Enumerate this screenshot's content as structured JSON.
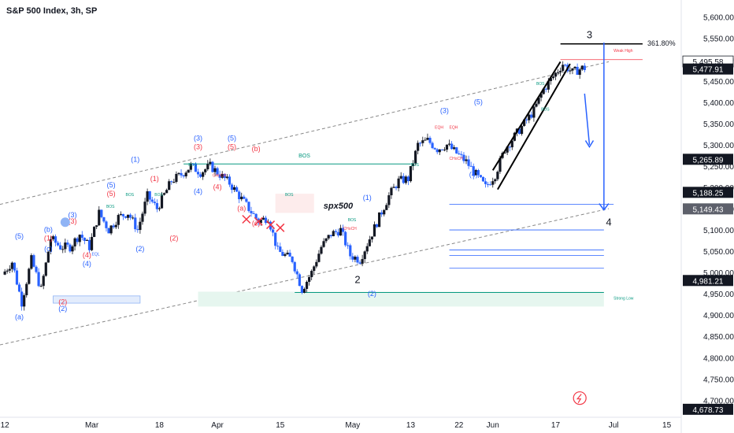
{
  "header": {
    "title": "S&P 500 Index, 3h, SP"
  },
  "colors": {
    "up": "#131722",
    "down": "#2962ff",
    "blue_label": "#2962ff",
    "red_label": "#f23645",
    "green": "#089981",
    "grid": "#ffffff",
    "axis_text": "#131722",
    "zone_blue": "#e3ecfc",
    "zone_green": "#e6f6ef",
    "dash": "#888888"
  },
  "icons": {
    "watermark": "lightning-icon"
  },
  "chart_data": {
    "type": "candlestick",
    "title": "S&P 500 Index, 3h, SP",
    "ylim": [
      4660,
      5640
    ],
    "y_ticks": [
      5600,
      5550,
      5500,
      5450,
      5400,
      5350,
      5300,
      5250,
      5200,
      5150,
      5100,
      5050,
      5000,
      4950,
      4900,
      4850,
      4800,
      4750,
      4700
    ],
    "y_tick_labels": [
      "5,600.00",
      "5,550.00",
      "5,500.00",
      "5,450.00",
      "5,400.00",
      "5,350.00",
      "5,300.00",
      "5,250.00",
      "5,200.00",
      "5,150.00",
      "5,100.00",
      "5,050.00",
      "5,000.00",
      "4,950.00",
      "4,900.00",
      "4,850.00",
      "4,800.00",
      "4,750.00",
      "4,700.00"
    ],
    "x_ticks": [
      {
        "t": 0,
        "label": "12"
      },
      {
        "t": 18,
        "label": "Mar"
      },
      {
        "t": 32,
        "label": "18"
      },
      {
        "t": 44,
        "label": "Apr"
      },
      {
        "t": 57,
        "label": "15"
      },
      {
        "t": 72,
        "label": "May"
      },
      {
        "t": 84,
        "label": "13"
      },
      {
        "t": 94,
        "label": "22"
      },
      {
        "t": 101,
        "label": "Jun"
      },
      {
        "t": 114,
        "label": "17"
      },
      {
        "t": 126,
        "label": "Jul"
      },
      {
        "t": 137,
        "label": "15"
      }
    ],
    "x_range": [
      -1,
      140
    ],
    "price_path": [
      [
        0,
        4995
      ],
      [
        2,
        5025
      ],
      [
        4,
        4930
      ],
      [
        6,
        5030
      ],
      [
        8,
        4960
      ],
      [
        10,
        5080
      ],
      [
        12,
        5060
      ],
      [
        14,
        5060
      ],
      [
        16,
        5090
      ],
      [
        18,
        5060
      ],
      [
        20,
        5140
      ],
      [
        22,
        5100
      ],
      [
        24,
        5130
      ],
      [
        26,
        5140
      ],
      [
        28,
        5100
      ],
      [
        30,
        5180
      ],
      [
        32,
        5150
      ],
      [
        35,
        5215
      ],
      [
        37,
        5230
      ],
      [
        39,
        5250
      ],
      [
        41,
        5235
      ],
      [
        43,
        5250
      ],
      [
        45,
        5230
      ],
      [
        47,
        5210
      ],
      [
        49,
        5180
      ],
      [
        51,
        5150
      ],
      [
        53,
        5120
      ],
      [
        55,
        5130
      ],
      [
        57,
        5050
      ],
      [
        60,
        5030
      ],
      [
        62,
        4960
      ],
      [
        64,
        5000
      ],
      [
        66,
        5060
      ],
      [
        68,
        5090
      ],
      [
        70,
        5100
      ],
      [
        72,
        5040
      ],
      [
        74,
        5030
      ],
      [
        76,
        5080
      ],
      [
        78,
        5130
      ],
      [
        80,
        5180
      ],
      [
        82,
        5215
      ],
      [
        84,
        5220
      ],
      [
        86,
        5300
      ],
      [
        88,
        5310
      ],
      [
        90,
        5290
      ],
      [
        92,
        5300
      ],
      [
        94,
        5280
      ],
      [
        96,
        5260
      ],
      [
        98,
        5230
      ],
      [
        100,
        5200
      ],
      [
        102,
        5230
      ],
      [
        104,
        5290
      ],
      [
        106,
        5320
      ],
      [
        108,
        5350
      ],
      [
        110,
        5380
      ],
      [
        112,
        5430
      ],
      [
        114,
        5460
      ],
      [
        116,
        5490
      ],
      [
        118,
        5470
      ],
      [
        120,
        5480
      ]
    ],
    "current_price": "5,477.91",
    "price_labels": [
      {
        "value": 5495.58,
        "text": "5,495.58",
        "style": "outline"
      },
      {
        "value": 5477.91,
        "text": "5,477.91",
        "style": "dark"
      },
      {
        "value": 5265.89,
        "text": "5,265.89",
        "style": "dark"
      },
      {
        "value": 5188.25,
        "text": "5,188.25",
        "style": "dark"
      },
      {
        "value": 5149.43,
        "text": "5,149.43",
        "style": "gray"
      },
      {
        "value": 4981.21,
        "text": "4,981.21",
        "style": "dark"
      },
      {
        "value": 4678.73,
        "text": "4,678.73",
        "style": "dark"
      }
    ],
    "annotations": {
      "spx_label": "spx500",
      "fib": "361.80%",
      "weak_high": "Weak High",
      "strong_low": "Strong Low",
      "wave_3": "3",
      "wave_2": "2",
      "wave_4": "4",
      "bos": "BOS",
      "eqh": "EQH",
      "eql": "EQL",
      "choch": "CHoCH",
      "wave_labels": [
        {
          "t": 3,
          "y": 5080,
          "text": "(5)",
          "color": "blue"
        },
        {
          "t": 3,
          "y": 4890,
          "text": "(a)",
          "color": "blue"
        },
        {
          "t": 9,
          "y": 5095,
          "text": "(b)",
          "color": "blue"
        },
        {
          "t": 9,
          "y": 5075,
          "text": "(1)",
          "color": "red"
        },
        {
          "t": 9,
          "y": 5050,
          "text": "(c)",
          "color": "blue"
        },
        {
          "t": 12,
          "y": 4925,
          "text": "(2)",
          "color": "red"
        },
        {
          "t": 12,
          "y": 4910,
          "text": "(2)",
          "color": "blue"
        },
        {
          "t": 14,
          "y": 5130,
          "text": "(3)",
          "color": "blue"
        },
        {
          "t": 14,
          "y": 5115,
          "text": "(3)",
          "color": "red"
        },
        {
          "t": 17,
          "y": 5035,
          "text": "(4)",
          "color": "red"
        },
        {
          "t": 17,
          "y": 5015,
          "text": "(4)",
          "color": "blue"
        },
        {
          "t": 22,
          "y": 5200,
          "text": "(5)",
          "color": "blue"
        },
        {
          "t": 22,
          "y": 5180,
          "text": "(5)",
          "color": "red"
        },
        {
          "t": 27,
          "y": 5260,
          "text": "(1)",
          "color": "blue"
        },
        {
          "t": 28,
          "y": 5050,
          "text": "(2)",
          "color": "blue"
        },
        {
          "t": 31,
          "y": 5215,
          "text": "(1)",
          "color": "red"
        },
        {
          "t": 35,
          "y": 5075,
          "text": "(2)",
          "color": "red"
        },
        {
          "t": 40,
          "y": 5310,
          "text": "(3)",
          "color": "blue"
        },
        {
          "t": 40,
          "y": 5290,
          "text": "(3)",
          "color": "red"
        },
        {
          "t": 40,
          "y": 5185,
          "text": "(4)",
          "color": "blue"
        },
        {
          "t": 44,
          "y": 5195,
          "text": "(4)",
          "color": "red"
        },
        {
          "t": 47,
          "y": 5310,
          "text": "(5)",
          "color": "blue"
        },
        {
          "t": 47,
          "y": 5290,
          "text": "(5)",
          "color": "red"
        },
        {
          "t": 52,
          "y": 5285,
          "text": "(b)",
          "color": "red"
        },
        {
          "t": 49,
          "y": 5145,
          "text": "(a)",
          "color": "red"
        },
        {
          "t": 52,
          "y": 5110,
          "text": "(c)",
          "color": "red"
        },
        {
          "t": 75,
          "y": 5170,
          "text": "(1)",
          "color": "blue"
        },
        {
          "t": 76,
          "y": 4945,
          "text": "(2)",
          "color": "blue"
        },
        {
          "t": 91,
          "y": 5375,
          "text": "(3)",
          "color": "blue"
        },
        {
          "t": 97,
          "y": 5225,
          "text": "(4)",
          "color": "blue"
        },
        {
          "t": 98,
          "y": 5395,
          "text": "(5)",
          "color": "blue"
        }
      ]
    }
  }
}
